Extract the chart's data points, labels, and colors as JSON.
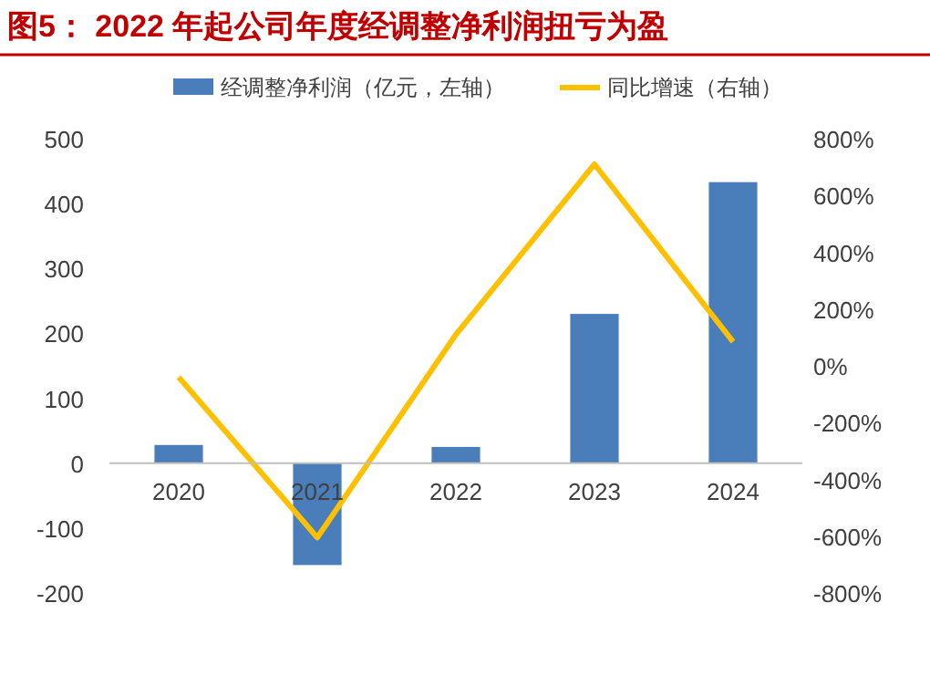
{
  "chart_data": {
    "type": "bar",
    "title": "图5： 2022 年起公司年度经调整净利润扭亏为盈",
    "categories": [
      "2020",
      "2021",
      "2022",
      "2023",
      "2024"
    ],
    "series": [
      {
        "name": "经调整净利润（亿元，左轴）",
        "color": "#4a7ebb",
        "values": [
          28,
          -157,
          25,
          230,
          433
        ]
      },
      {
        "name": "同比增速（右轴）",
        "type": "line",
        "axis": "y2",
        "color": "#ffc000",
        "values": [
          -40,
          -605,
          110,
          710,
          85
        ]
      }
    ],
    "ylim": [
      -200,
      500
    ],
    "yticks": [
      -200,
      -100,
      0,
      100,
      200,
      300,
      400,
      500
    ],
    "y2lim": [
      -800,
      800
    ],
    "y2ticks": [
      {
        "value": -800,
        "label": "-800%"
      },
      {
        "value": -600,
        "label": "-600%"
      },
      {
        "value": -400,
        "label": "-400%"
      },
      {
        "value": -200,
        "label": "-200%"
      },
      {
        "value": 0,
        "label": "0%"
      },
      {
        "value": 200,
        "label": "200%"
      },
      {
        "value": 400,
        "label": "400%"
      },
      {
        "value": 600,
        "label": "600%"
      },
      {
        "value": 800,
        "label": "800%"
      }
    ],
    "grid": false,
    "legend": "top"
  }
}
